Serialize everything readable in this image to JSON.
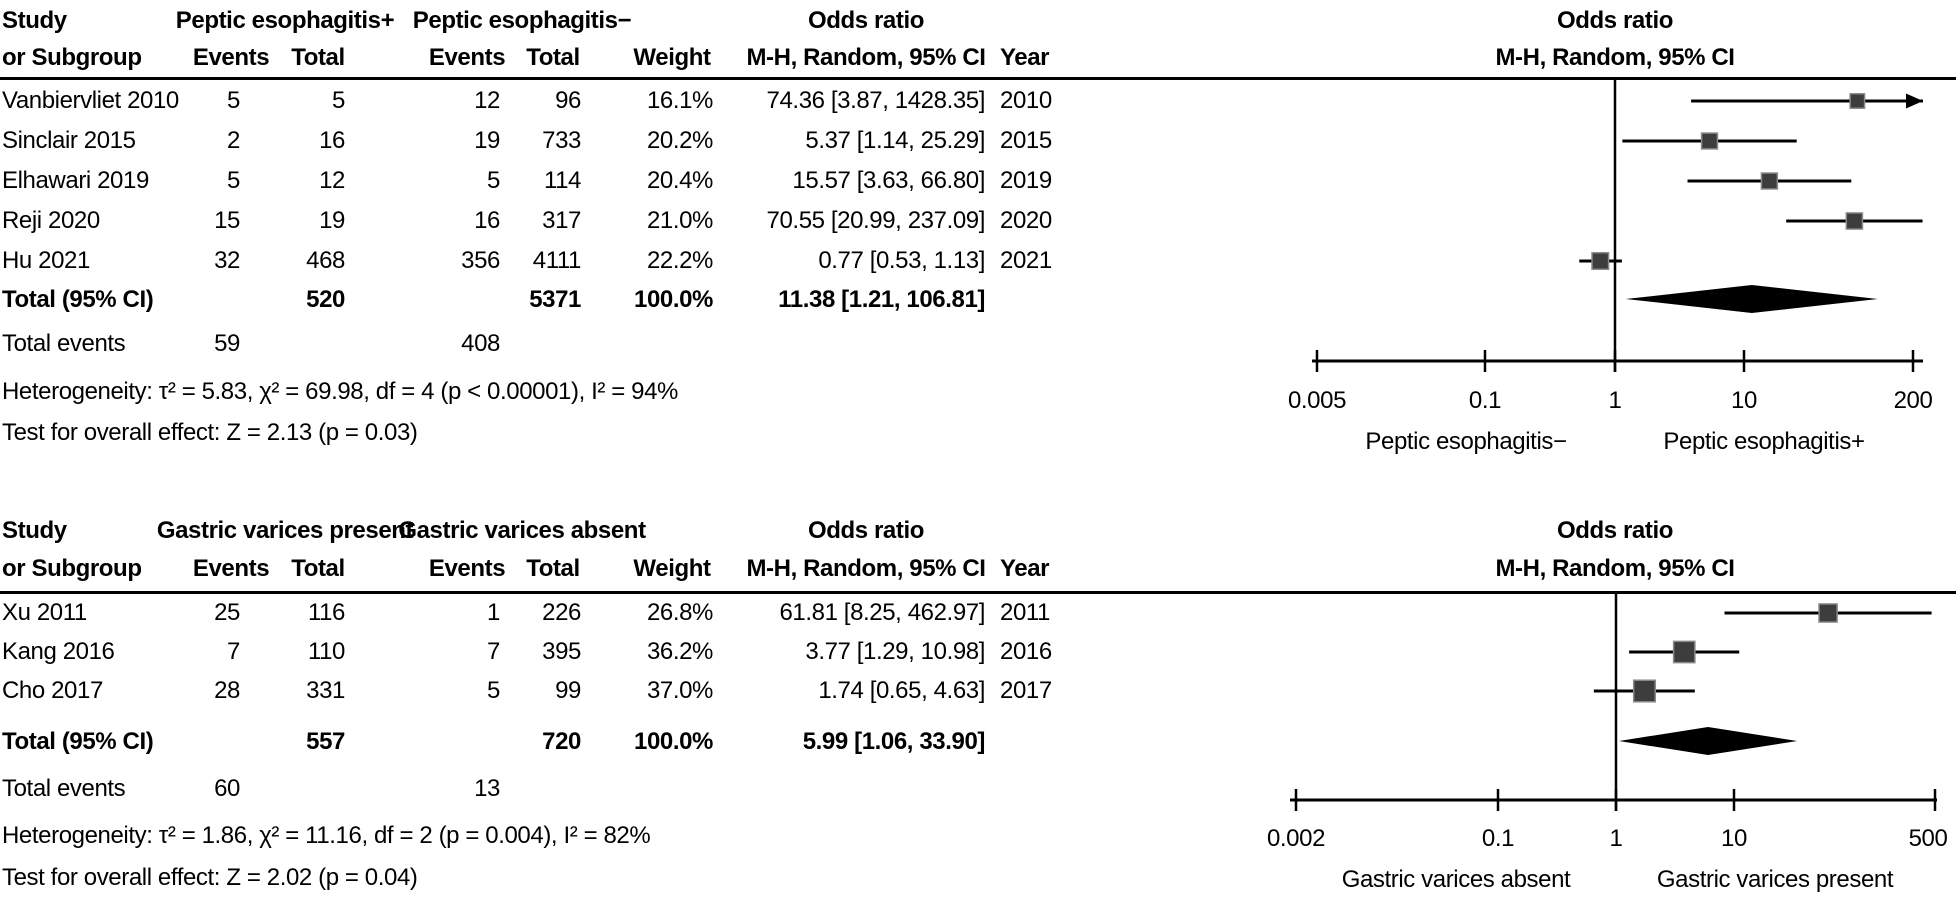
{
  "chart_data": [
    {
      "type": "scatter",
      "subtype": "forest-plot",
      "effect_measure": "Odds ratio",
      "model": "M-H, Random, 95% CI",
      "table": {
        "study_header1": "Study",
        "study_header2": "or Subgroup",
        "group1": "Peptic esophagitis+",
        "group2": "Peptic esophagitis−",
        "events_header": "Events",
        "total_header": "Total",
        "weight_header": "Weight",
        "or_header1": "Odds ratio",
        "or_header2": "M-H, Random, 95% CI",
        "year_header": "Year"
      },
      "plot_header1": "Odds ratio",
      "plot_header2": "M-H, Random, 95% CI",
      "studies": [
        {
          "name": "Vanbiervliet 2010",
          "events1": "5",
          "total1": "5",
          "events2": "12",
          "total2": "96",
          "weight": "16.1%",
          "weight_pct": 16.1,
          "or_ci": "74.36 [3.87, 1428.35]",
          "year": "2010",
          "or": 74.36,
          "lo": 3.87,
          "hi": 1428.35
        },
        {
          "name": "Sinclair 2015",
          "events1": "2",
          "total1": "16",
          "events2": "19",
          "total2": "733",
          "weight": "20.2%",
          "weight_pct": 20.2,
          "or_ci": "5.37 [1.14, 25.29]",
          "year": "2015",
          "or": 5.37,
          "lo": 1.14,
          "hi": 25.29
        },
        {
          "name": "Elhawari 2019",
          "events1": "5",
          "total1": "12",
          "events2": "5",
          "total2": "114",
          "weight": "20.4%",
          "weight_pct": 20.4,
          "or_ci": "15.57 [3.63, 66.80]",
          "year": "2019",
          "or": 15.57,
          "lo": 3.63,
          "hi": 66.8
        },
        {
          "name": "Reji 2020",
          "events1": "15",
          "total1": "19",
          "events2": "16",
          "total2": "317",
          "weight": "21.0%",
          "weight_pct": 21.0,
          "or_ci": "70.55 [20.99, 237.09]",
          "year": "2020",
          "or": 70.55,
          "lo": 20.99,
          "hi": 237.09
        },
        {
          "name": "Hu 2021",
          "events1": "32",
          "total1": "468",
          "events2": "356",
          "total2": "4111",
          "weight": "22.2%",
          "weight_pct": 22.2,
          "or_ci": "0.77 [0.53, 1.13]",
          "year": "2021",
          "or": 0.77,
          "lo": 0.53,
          "hi": 1.13
        }
      ],
      "total_row": {
        "label": "Total (95% CI)",
        "total1": "520",
        "total2": "5371",
        "weight": "100.0%",
        "or_ci": "11.38 [1.21, 106.81]",
        "or": 11.38,
        "lo": 1.21,
        "hi": 106.81
      },
      "total_events": {
        "label": "Total events",
        "events1": "59",
        "events2": "408"
      },
      "heterogeneity": "Heterogeneity: τ² = 5.83, χ² = 69.98, df = 4 (p < 0.00001), I² = 94%",
      "overall_effect": "Test for overall effect: Z = 2.13 (p = 0.03)",
      "axis": {
        "scale": "log",
        "ticks": [
          "0.005",
          "0.1",
          "1",
          "10",
          "200"
        ],
        "tick_values": [
          0.005,
          0.1,
          1,
          10,
          200
        ],
        "xlim": [
          0.005,
          200
        ],
        "left_label": "Peptic esophagitis−",
        "right_label": "Peptic esophagitis+"
      }
    },
    {
      "type": "scatter",
      "subtype": "forest-plot",
      "effect_measure": "Odds ratio",
      "model": "M-H, Random, 95% CI",
      "table": {
        "study_header1": "Study",
        "study_header2": "or Subgroup",
        "group1": "Gastric varices present",
        "group2": "Gastric varices absent",
        "events_header": "Events",
        "total_header": "Total",
        "weight_header": "Weight",
        "or_header1": "Odds ratio",
        "or_header2": "M-H, Random, 95% CI",
        "year_header": "Year"
      },
      "plot_header1": "Odds ratio",
      "plot_header2": "M-H, Random, 95% CI",
      "studies": [
        {
          "name": "Xu 2011",
          "events1": "25",
          "total1": "116",
          "events2": "1",
          "total2": "226",
          "weight": "26.8%",
          "weight_pct": 26.8,
          "or_ci": "61.81 [8.25, 462.97]",
          "year": "2011",
          "or": 61.81,
          "lo": 8.25,
          "hi": 462.97
        },
        {
          "name": "Kang 2016",
          "events1": "7",
          "total1": "110",
          "events2": "7",
          "total2": "395",
          "weight": "36.2%",
          "weight_pct": 36.2,
          "or_ci": "3.77 [1.29, 10.98]",
          "year": "2016",
          "or": 3.77,
          "lo": 1.29,
          "hi": 10.98
        },
        {
          "name": "Cho 2017",
          "events1": "28",
          "total1": "331",
          "events2": "5",
          "total2": "99",
          "weight": "37.0%",
          "weight_pct": 37.0,
          "or_ci": "1.74 [0.65, 4.63]",
          "year": "2017",
          "or": 1.74,
          "lo": 0.65,
          "hi": 4.63
        }
      ],
      "total_row": {
        "label": "Total (95% CI)",
        "total1": "557",
        "total2": "720",
        "weight": "100.0%",
        "or_ci": "5.99 [1.06, 33.90]",
        "or": 5.99,
        "lo": 1.06,
        "hi": 33.9
      },
      "total_events": {
        "label": "Total events",
        "events1": "60",
        "events2": "13"
      },
      "heterogeneity": "Heterogeneity: τ² = 1.86, χ² = 11.16, df = 2 (p = 0.004), I² = 82%",
      "overall_effect": "Test for overall effect: Z = 2.02 (p = 0.04)",
      "axis": {
        "scale": "log",
        "ticks": [
          "0.002",
          "0.1",
          "1",
          "10",
          "500"
        ],
        "tick_values": [
          0.002,
          0.1,
          1,
          10,
          500
        ],
        "xlim": [
          0.002,
          500
        ],
        "left_label": "Gastric varices absent",
        "right_label": "Gastric varices present"
      }
    }
  ],
  "colors": {
    "square": "#3d3d3d",
    "line": "#000000",
    "diamond": "#000000"
  }
}
